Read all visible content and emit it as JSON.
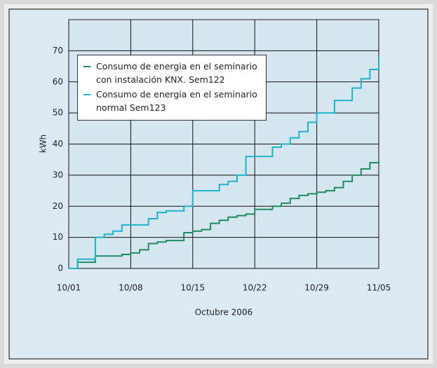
{
  "chart_data": {
    "type": "line",
    "step": "post",
    "ylabel": "kWh",
    "xlabel": "Octubre 2006",
    "x": [
      "2006-10-01",
      "2006-10-02",
      "2006-10-03",
      "2006-10-04",
      "2006-10-05",
      "2006-10-06",
      "2006-10-07",
      "2006-10-08",
      "2006-10-09",
      "2006-10-10",
      "2006-10-11",
      "2006-10-12",
      "2006-10-13",
      "2006-10-14",
      "2006-10-15",
      "2006-10-16",
      "2006-10-17",
      "2006-10-18",
      "2006-10-19",
      "2006-10-20",
      "2006-10-21",
      "2006-10-22",
      "2006-10-23",
      "2006-10-24",
      "2006-10-25",
      "2006-10-26",
      "2006-10-27",
      "2006-10-28",
      "2006-10-29",
      "2006-10-30",
      "2006-10-31",
      "2006-11-01",
      "2006-11-02",
      "2006-11-03",
      "2006-11-04",
      "2006-11-05"
    ],
    "series": [
      {
        "name": "Consumo de energia en el seminario con instalación KNX. Sem122",
        "color": "#1e8c5c",
        "values": [
          0,
          2,
          2,
          4,
          4,
          4,
          4.5,
          5,
          6,
          8,
          8.5,
          9,
          9,
          11.5,
          12,
          12.5,
          14.5,
          15.5,
          16.5,
          17,
          17.5,
          19,
          19,
          20,
          21,
          22.5,
          23.5,
          24,
          24.5,
          25,
          26,
          28,
          30,
          32,
          34,
          34.5
        ]
      },
      {
        "name": "Consumo de energia en el seminario normal Sem123",
        "color": "#1bb4c9",
        "values": [
          0,
          3,
          3,
          10,
          11,
          12,
          14,
          14,
          14,
          16,
          18,
          18.5,
          18.5,
          20,
          25,
          25,
          25,
          27,
          28,
          30,
          36,
          36,
          36,
          39,
          40,
          42,
          44,
          47,
          50,
          50,
          54,
          54,
          58,
          61,
          64,
          68
        ]
      }
    ],
    "xlim": [
      "2006-10-01",
      "2006-11-05"
    ],
    "xticks": [
      {
        "value": "2006-10-01",
        "label": "10/01"
      },
      {
        "value": "2006-10-08",
        "label": "10/08"
      },
      {
        "value": "2006-10-15",
        "label": "10/15"
      },
      {
        "value": "2006-10-22",
        "label": "10/22"
      },
      {
        "value": "2006-10-29",
        "label": "10/29"
      },
      {
        "value": "2006-11-05",
        "label": "11/05"
      }
    ],
    "ylim": [
      0,
      80
    ],
    "yticks": [
      0,
      10,
      20,
      30,
      40,
      50,
      60,
      70
    ],
    "grid": true,
    "legend": "upper-left"
  }
}
